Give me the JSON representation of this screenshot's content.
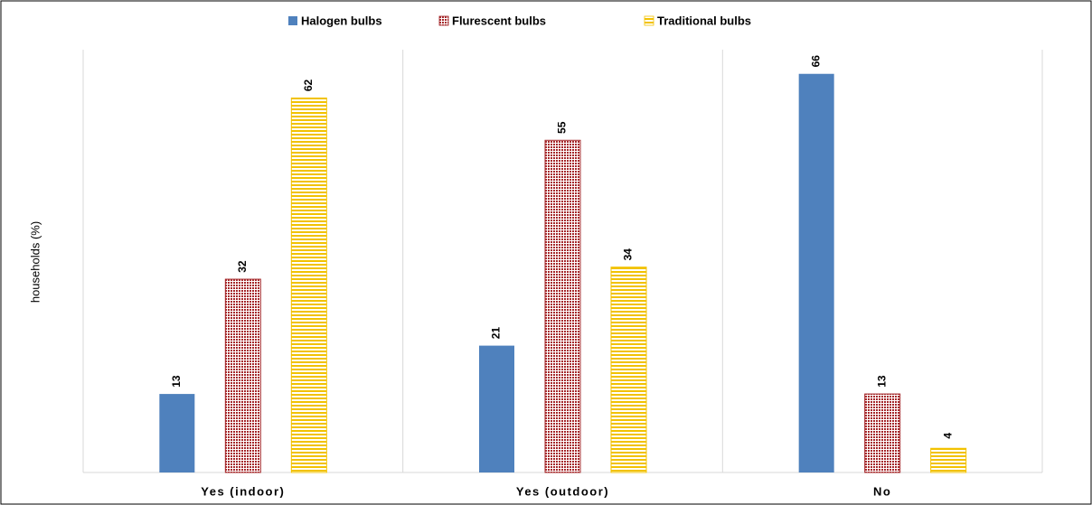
{
  "chart_data": {
    "type": "bar",
    "y_label": "households (%)",
    "categories": [
      "Yes (indoor)",
      "Yes (outdoor)",
      "No"
    ],
    "series": [
      {
        "name": "Halogen bulbs",
        "color": "#4f81bd",
        "pattern": "solid",
        "values": [
          13,
          21,
          66
        ]
      },
      {
        "name": "Flurescent bulbs",
        "color": "#a5282b",
        "pattern": "dots",
        "values": [
          32,
          55,
          13
        ]
      },
      {
        "name": "Traditional bulbs",
        "color": "#f2c200",
        "pattern": "hlines",
        "values": [
          62,
          34,
          4
        ]
      }
    ],
    "ylim": [
      0,
      70
    ],
    "legend": "top"
  }
}
